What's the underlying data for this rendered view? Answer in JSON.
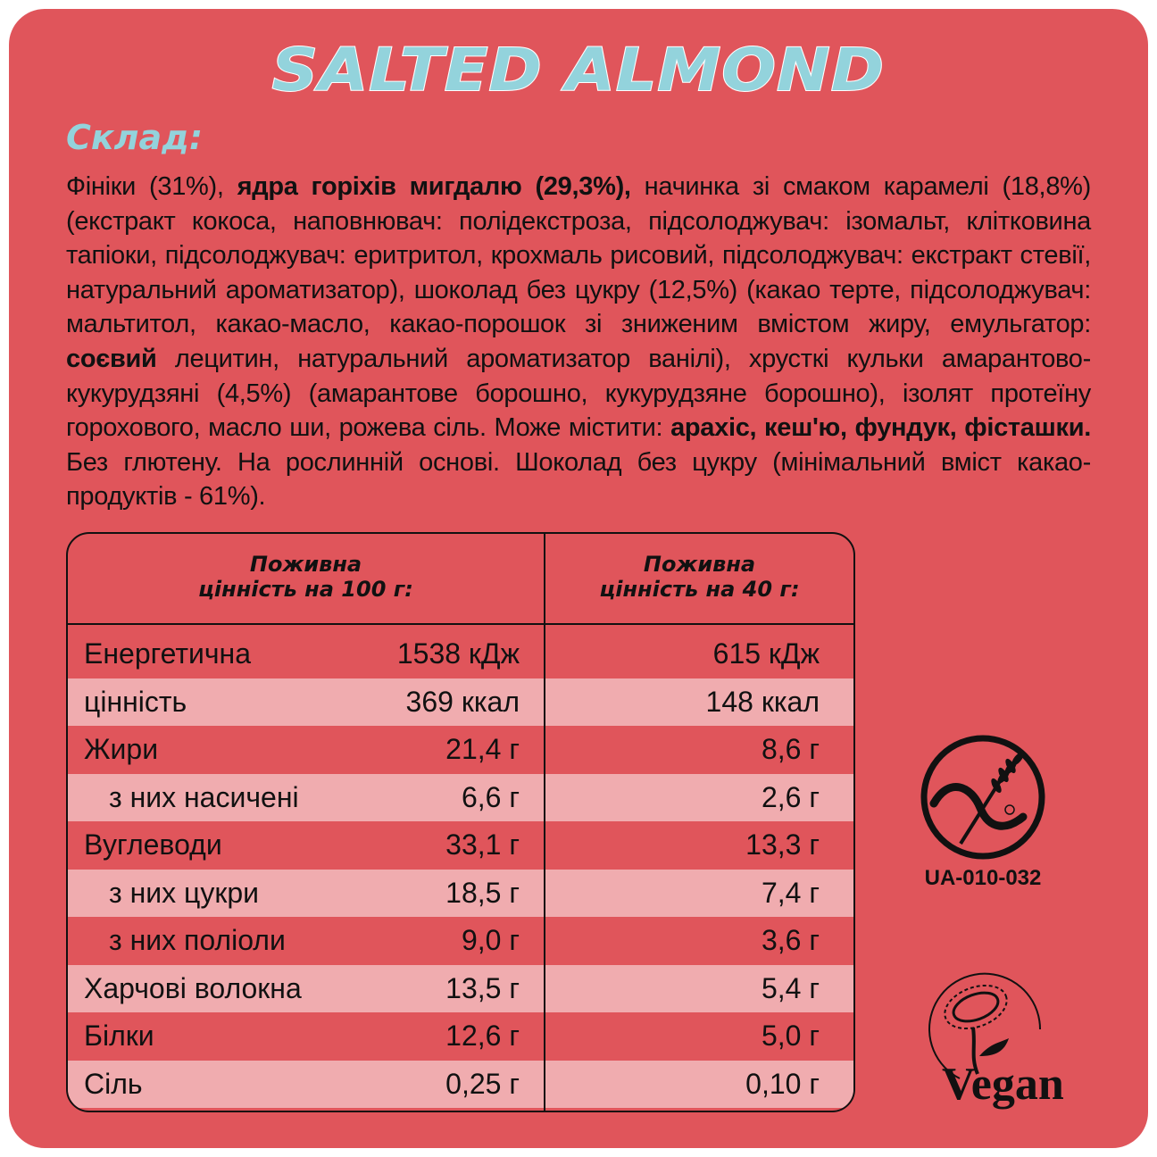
{
  "title": "SALTED ALMOND",
  "composition_heading": "Склад:",
  "ingredients": [
    {
      "text": "Фініки (31%), ",
      "bold": false
    },
    {
      "text": "ядра горіхів мигдалю (29,3%),",
      "bold": true
    },
    {
      "text": " начинка зі смаком карамелі (18,8%) (екстракт кокоса, наповнювач: полідекстроза, підсолоджувач: ізомальт, клітковина тапіоки, підсолоджувач: еритритол, крохмаль рисовий, підсолоджувач: екстракт стевії, натуральний ароматизатор), шоколад без цукру (12,5%) (какао терте, підсолоджувач: мальтитол, какао-масло, какао-порошок зі зниженим вмістом жиру, емульгатор: ",
      "bold": false
    },
    {
      "text": "соєвий",
      "bold": true
    },
    {
      "text": " лецитин, натуральний ароматизатор ванілі), хрусткі кульки амарантово-кукурудзяні (4,5%) (амарантове борошно, кукурудзяне борошно), ізолят протеїну горохового, масло ши, рожева сіль. Може містити: ",
      "bold": false
    },
    {
      "text": "арахіс, кеш'ю, фундук, фісташки.",
      "bold": true
    },
    {
      "text": " Без глютену. На рослинній основі. Шоколад без цукру (мінімальний вміст какао-продуктів - 61%).",
      "bold": false
    }
  ],
  "nutrition": {
    "header_100g": [
      "Поживна",
      "цінність на 100 г:"
    ],
    "header_40g": [
      "Поживна",
      "цінність на 40 г:"
    ],
    "rows": [
      {
        "label": "Енергетична",
        "per100": "1538 кДж",
        "per40": "615 кДж",
        "indent": false
      },
      {
        "label": "цінність",
        "per100": "369 ккал",
        "per40": "148 ккал",
        "indent": false
      },
      {
        "label": "Жири",
        "per100": "21,4 г",
        "per40": "8,6 г",
        "indent": false
      },
      {
        "label": "з них насичені",
        "per100": "6,6 г",
        "per40": "2,6 г",
        "indent": true
      },
      {
        "label": "Вуглеводи",
        "per100": "33,1 г",
        "per40": "13,3 г",
        "indent": false
      },
      {
        "label": "з них цукри",
        "per100": "18,5 г",
        "per40": "7,4 г",
        "indent": true
      },
      {
        "label": "з них поліоли",
        "per100": "9,0 г",
        "per40": "3,6 г",
        "indent": true
      },
      {
        "label": "Харчові волокна",
        "per100": "13,5 г",
        "per40": "5,4 г",
        "indent": false
      },
      {
        "label": "Білки",
        "per100": "12,6 г",
        "per40": "5,0 г",
        "indent": false
      },
      {
        "label": "Сіль",
        "per100": "0,25 г",
        "per40": "0,10 г",
        "indent": false
      }
    ]
  },
  "gluten_free_cert": "UA-010-032",
  "vegan_logo_text": "Vegan",
  "colors": {
    "background": "#E0555B",
    "row_light": "#F0ACAF",
    "accent": "#93D3DC"
  }
}
